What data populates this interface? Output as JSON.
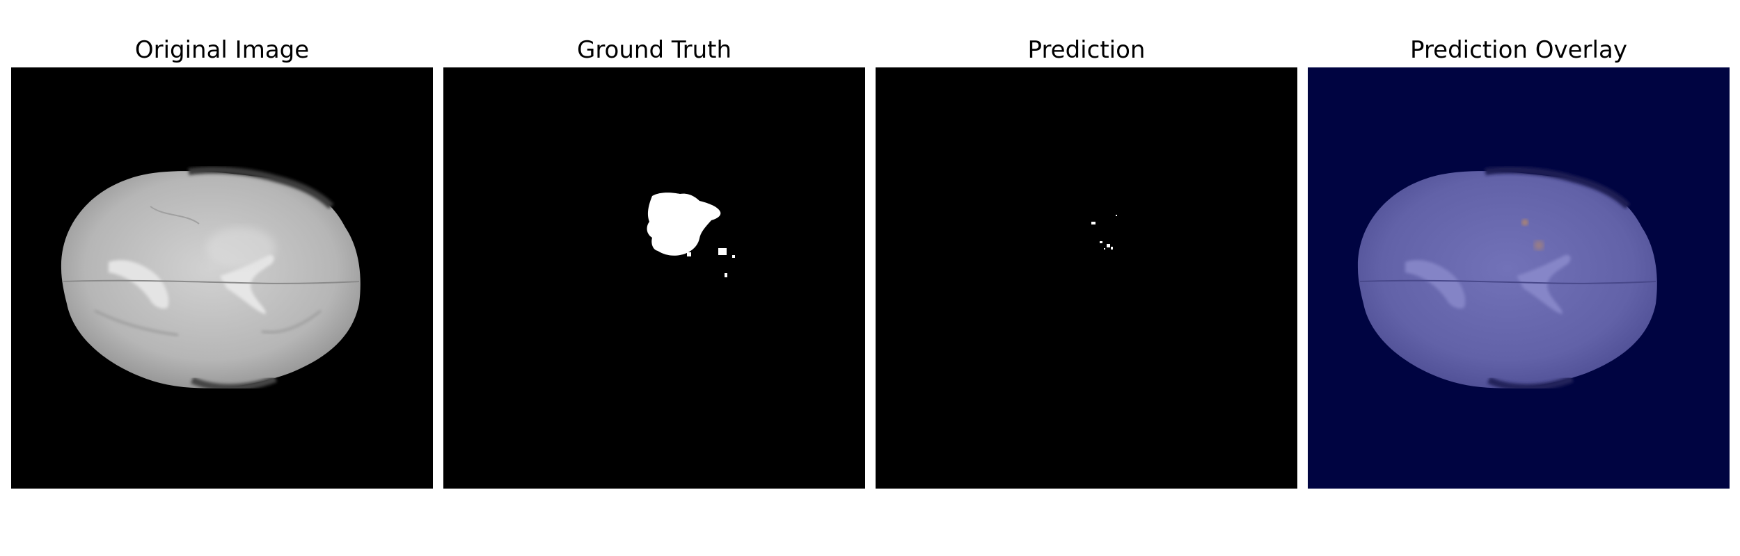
{
  "panels": [
    {
      "title": "Original Image",
      "background": "#000000",
      "tissue_color": "#c8c8c8"
    },
    {
      "title": "Ground Truth",
      "background": "#000000",
      "mask_color": "#ffffff"
    },
    {
      "title": "Prediction",
      "background": "#000000",
      "mask_color": "#ffffff"
    },
    {
      "title": "Prediction Overlay",
      "background": "#000441",
      "tissue_color": "#6a6ab0",
      "highlight_color": "#c8905a"
    }
  ]
}
